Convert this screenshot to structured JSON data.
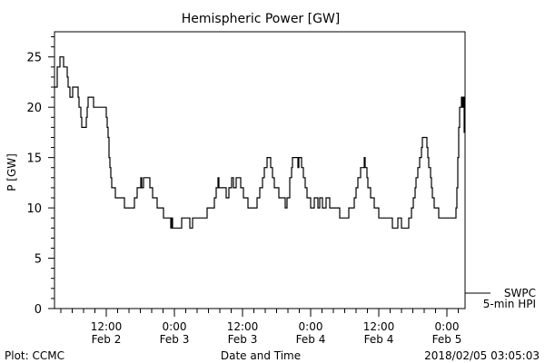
{
  "chart_data": {
    "type": "line",
    "title": "Hemispheric Power [GW]",
    "xlabel": "Date and Time",
    "ylabel": "P [GW]",
    "x_units": "hours since 2018-02-02 00:00 UT",
    "xlim": [
      2.88,
      75.2
    ],
    "ylim": [
      0,
      27.5
    ],
    "y_ticks": [
      0,
      5,
      10,
      15,
      20,
      25
    ],
    "x_ticks": [
      {
        "x": 12,
        "time": "12:00",
        "date": "Feb 2"
      },
      {
        "x": 24,
        "time": "0:00",
        "date": "Feb 3"
      },
      {
        "x": 36,
        "time": "12:00",
        "date": "Feb 3"
      },
      {
        "x": 48,
        "time": "0:00",
        "date": "Feb 4"
      },
      {
        "x": 60,
        "time": "12:00",
        "date": "Feb 4"
      },
      {
        "x": 72,
        "time": "0:00",
        "date": "Feb 5"
      }
    ],
    "grid": false,
    "legend_position": "bottom-right-outside",
    "series": [
      {
        "name": "SWPC 5-min HPI",
        "line_label": "SWPC",
        "line_label2": "5-min HPI",
        "color": "#000000",
        "step": true,
        "points": [
          [
            2.88,
            22
          ],
          [
            3.36,
            24
          ],
          [
            3.84,
            25
          ],
          [
            4.48,
            24
          ],
          [
            5.12,
            23
          ],
          [
            5.28,
            22
          ],
          [
            5.6,
            21
          ],
          [
            6.08,
            22
          ],
          [
            7.04,
            21
          ],
          [
            7.2,
            20
          ],
          [
            7.52,
            19
          ],
          [
            7.68,
            18
          ],
          [
            8.48,
            19
          ],
          [
            8.64,
            20
          ],
          [
            8.8,
            21
          ],
          [
            9.76,
            20
          ],
          [
            12.0,
            19
          ],
          [
            12.16,
            18
          ],
          [
            12.32,
            17
          ],
          [
            12.48,
            15
          ],
          [
            12.64,
            14
          ],
          [
            12.8,
            13
          ],
          [
            12.96,
            12
          ],
          [
            13.6,
            11
          ],
          [
            15.2,
            10
          ],
          [
            16.96,
            11
          ],
          [
            17.44,
            12
          ],
          [
            18.08,
            13
          ],
          [
            18.24,
            12
          ],
          [
            18.56,
            13
          ],
          [
            19.68,
            12
          ],
          [
            20.16,
            11
          ],
          [
            20.96,
            10
          ],
          [
            22.08,
            9
          ],
          [
            23.36,
            8
          ],
          [
            23.52,
            9
          ],
          [
            23.68,
            8
          ],
          [
            24.32,
            8
          ],
          [
            25.28,
            9
          ],
          [
            26.72,
            8
          ],
          [
            27.2,
            9
          ],
          [
            29.76,
            10
          ],
          [
            31.04,
            11
          ],
          [
            31.36,
            12
          ],
          [
            31.68,
            13
          ],
          [
            31.84,
            12
          ],
          [
            33.12,
            11
          ],
          [
            33.6,
            12
          ],
          [
            34.08,
            13
          ],
          [
            34.4,
            12
          ],
          [
            34.88,
            13
          ],
          [
            35.68,
            12
          ],
          [
            36.16,
            11
          ],
          [
            36.96,
            10
          ],
          [
            38.56,
            11
          ],
          [
            39.04,
            12
          ],
          [
            39.52,
            13
          ],
          [
            39.84,
            14
          ],
          [
            40.32,
            15
          ],
          [
            40.96,
            14
          ],
          [
            41.28,
            13
          ],
          [
            41.6,
            12
          ],
          [
            42.4,
            11
          ],
          [
            43.52,
            10
          ],
          [
            43.84,
            11
          ],
          [
            44.32,
            13
          ],
          [
            44.64,
            14
          ],
          [
            44.8,
            15
          ],
          [
            45.76,
            14
          ],
          [
            45.92,
            15
          ],
          [
            46.4,
            14
          ],
          [
            46.72,
            13
          ],
          [
            47.04,
            12
          ],
          [
            47.36,
            11
          ],
          [
            48.0,
            10
          ],
          [
            48.64,
            11
          ],
          [
            49.28,
            10
          ],
          [
            49.6,
            11
          ],
          [
            50.08,
            10
          ],
          [
            50.72,
            11
          ],
          [
            51.36,
            10
          ],
          [
            53.12,
            9
          ],
          [
            54.72,
            10
          ],
          [
            55.68,
            11
          ],
          [
            56.0,
            12
          ],
          [
            56.32,
            13
          ],
          [
            56.8,
            14
          ],
          [
            57.44,
            15
          ],
          [
            57.6,
            14
          ],
          [
            57.92,
            13
          ],
          [
            58.08,
            12
          ],
          [
            58.56,
            11
          ],
          [
            59.2,
            10
          ],
          [
            60.0,
            9
          ],
          [
            62.4,
            8
          ],
          [
            63.36,
            9
          ],
          [
            64.0,
            8
          ],
          [
            65.28,
            9
          ],
          [
            65.76,
            10
          ],
          [
            66.08,
            11
          ],
          [
            66.4,
            12
          ],
          [
            66.56,
            13
          ],
          [
            66.88,
            14
          ],
          [
            67.2,
            15
          ],
          [
            67.52,
            16
          ],
          [
            67.68,
            17
          ],
          [
            68.48,
            16
          ],
          [
            68.64,
            15
          ],
          [
            68.8,
            14
          ],
          [
            69.12,
            13
          ],
          [
            69.28,
            12
          ],
          [
            69.44,
            11
          ],
          [
            69.76,
            10
          ],
          [
            70.56,
            9
          ],
          [
            73.6,
            10
          ],
          [
            73.76,
            12
          ],
          [
            73.92,
            15
          ],
          [
            74.08,
            18
          ],
          [
            74.24,
            20
          ],
          [
            74.56,
            21
          ],
          [
            74.72,
            20
          ],
          [
            74.88,
            21
          ],
          [
            75.04,
            17.5
          ],
          [
            75.1,
            17.5
          ]
        ]
      }
    ]
  },
  "footer": {
    "left": "Plot: CCMC",
    "right": "2018/02/05 03:05:03"
  }
}
